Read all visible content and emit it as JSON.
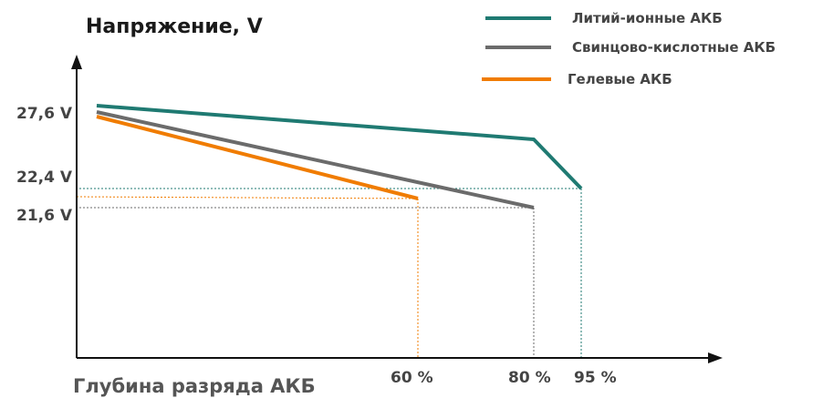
{
  "chart_data": {
    "type": "line",
    "title": "",
    "ylabel": "Напряжение, V",
    "xlabel": "Глубина разряда АКБ",
    "y_ticks": [
      "27,6 V",
      "22,4 V",
      "21,6 V"
    ],
    "x_ticks": [
      "60 %",
      "80 %",
      "95 %"
    ],
    "y_tick_values": [
      27.6,
      22.4,
      21.6
    ],
    "x_tick_values": [
      60,
      80,
      95
    ],
    "series": [
      {
        "name": "Литий-ионные АКБ",
        "color": "#1f7a72",
        "points": [
          [
            0,
            27.6
          ],
          [
            80,
            25.5
          ],
          [
            95,
            22.4
          ]
        ]
      },
      {
        "name": "Свинцово-кислотные АКБ",
        "color": "#6b6b6b",
        "points": [
          [
            0,
            27.4
          ],
          [
            80,
            21.6
          ]
        ]
      },
      {
        "name": "Гелевые АКБ",
        "color": "#f07c00",
        "points": [
          [
            0,
            27.2
          ],
          [
            60,
            21.9
          ]
        ]
      }
    ],
    "legend_position": "top-right",
    "grid": false
  }
}
